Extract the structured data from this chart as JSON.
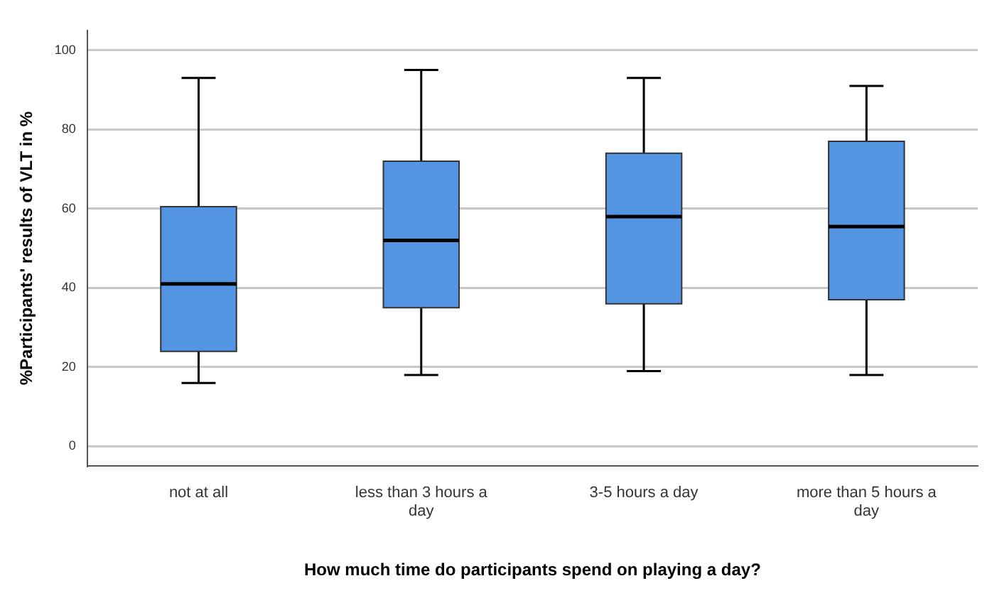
{
  "chart_data": {
    "type": "box",
    "xlabel": "How much time do participants spend on playing a day?",
    "ylabel": "%Participants' results of VLT in %",
    "categories": [
      "not at all",
      "less than 3 hours a day",
      "3-5 hours a day",
      "more than 5 hours a day"
    ],
    "boxes": [
      {
        "low": 16,
        "q1": 24,
        "median": 41,
        "q3": 60.5,
        "high": 93
      },
      {
        "low": 18,
        "q1": 35,
        "median": 52,
        "q3": 72,
        "high": 95
      },
      {
        "low": 19,
        "q1": 36,
        "median": 58,
        "q3": 74,
        "high": 93
      },
      {
        "low": 18,
        "q1": 37,
        "median": 55.5,
        "q3": 77,
        "high": 91
      }
    ],
    "color": "#5394e3",
    "ylim": [
      -5,
      105
    ],
    "yticks": [
      0,
      20,
      40,
      60,
      80,
      100
    ],
    "grid": "y",
    "legend": false
  }
}
